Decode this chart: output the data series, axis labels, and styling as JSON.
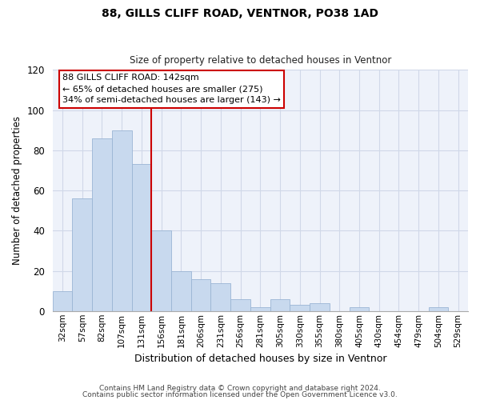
{
  "title1": "88, GILLS CLIFF ROAD, VENTNOR, PO38 1AD",
  "title2": "Size of property relative to detached houses in Ventnor",
  "xlabel": "Distribution of detached houses by size in Ventnor",
  "ylabel": "Number of detached properties",
  "bar_labels": [
    "32sqm",
    "57sqm",
    "82sqm",
    "107sqm",
    "131sqm",
    "156sqm",
    "181sqm",
    "206sqm",
    "231sqm",
    "256sqm",
    "281sqm",
    "305sqm",
    "330sqm",
    "355sqm",
    "380sqm",
    "405sqm",
    "430sqm",
    "454sqm",
    "479sqm",
    "504sqm",
    "529sqm"
  ],
  "bar_values": [
    10,
    56,
    86,
    90,
    73,
    40,
    20,
    16,
    14,
    6,
    2,
    6,
    3,
    4,
    0,
    2,
    0,
    0,
    0,
    2,
    0
  ],
  "bar_color": "#c8d9ee",
  "bar_edge_color": "#9ab5d4",
  "ylim": [
    0,
    120
  ],
  "yticks": [
    0,
    20,
    40,
    60,
    80,
    100,
    120
  ],
  "vline_color": "#cc0000",
  "annotation_box_text": "88 GILLS CLIFF ROAD: 142sqm\n← 65% of detached houses are smaller (275)\n34% of semi-detached houses are larger (143) →",
  "annotation_box_color": "#cc0000",
  "footer1": "Contains HM Land Registry data © Crown copyright and database right 2024.",
  "footer2": "Contains public sector information licensed under the Open Government Licence v3.0.",
  "bg_color": "#ffffff",
  "plot_bg_color": "#eef2fa",
  "grid_color": "#d0d8e8"
}
